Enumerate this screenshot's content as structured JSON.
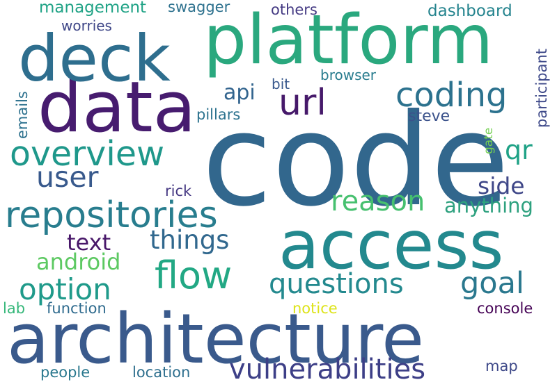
{
  "words": [
    {
      "text": "code",
      "color": "#32678d"
    },
    {
      "text": "architecture",
      "color": "#3a5a8c"
    },
    {
      "text": "platform",
      "color": "#2aa87e"
    },
    {
      "text": "access",
      "color": "#23898e"
    },
    {
      "text": "data",
      "color": "#471c6f"
    },
    {
      "text": "deck",
      "color": "#2e6e8e"
    },
    {
      "text": "repositories",
      "color": "#287d8e"
    },
    {
      "text": "overview",
      "color": "#1f988b"
    },
    {
      "text": "coding",
      "color": "#2c728e"
    },
    {
      "text": "flow",
      "color": "#22a884"
    },
    {
      "text": "url",
      "color": "#46196a"
    },
    {
      "text": "questions",
      "color": "#23898e"
    },
    {
      "text": "reason",
      "color": "#46c06f"
    },
    {
      "text": "vulnerabilities",
      "color": "#3d3f87"
    },
    {
      "text": "option",
      "color": "#1f9a8a"
    },
    {
      "text": "goal",
      "color": "#2a788e"
    },
    {
      "text": "user",
      "color": "#38598c"
    },
    {
      "text": "things",
      "color": "#31688e"
    },
    {
      "text": "anything",
      "color": "#2ea17f"
    },
    {
      "text": "api",
      "color": "#32648e"
    },
    {
      "text": "qr",
      "color": "#1fa286"
    },
    {
      "text": "side",
      "color": "#3f4788"
    },
    {
      "text": "text",
      "color": "#481769"
    },
    {
      "text": "android",
      "color": "#5dc962"
    },
    {
      "text": "management",
      "color": "#20a386"
    },
    {
      "text": "swagger",
      "color": "#2d718e"
    },
    {
      "text": "others",
      "color": "#443a83"
    },
    {
      "text": "dashboard",
      "color": "#25848e"
    },
    {
      "text": "worries",
      "color": "#3f4788"
    },
    {
      "text": "browser",
      "color": "#287c8e"
    },
    {
      "text": "bit",
      "color": "#38588c"
    },
    {
      "text": "pillars",
      "color": "#2c728e"
    },
    {
      "text": "steve",
      "color": "#3b528b"
    },
    {
      "text": "rick",
      "color": "#453882"
    },
    {
      "text": "lab",
      "color": "#35b779"
    },
    {
      "text": "function",
      "color": "#2f6b8e"
    },
    {
      "text": "notice",
      "color": "#dde318"
    },
    {
      "text": "console",
      "color": "#440154"
    },
    {
      "text": "people",
      "color": "#2a788e"
    },
    {
      "text": "location",
      "color": "#2e6f8e"
    },
    {
      "text": "map",
      "color": "#3e4989"
    },
    {
      "text": "participant",
      "color": "#3e4989"
    },
    {
      "text": "emails",
      "color": "#2d718e"
    },
    {
      "text": "gate",
      "color": "#75d054"
    }
  ]
}
